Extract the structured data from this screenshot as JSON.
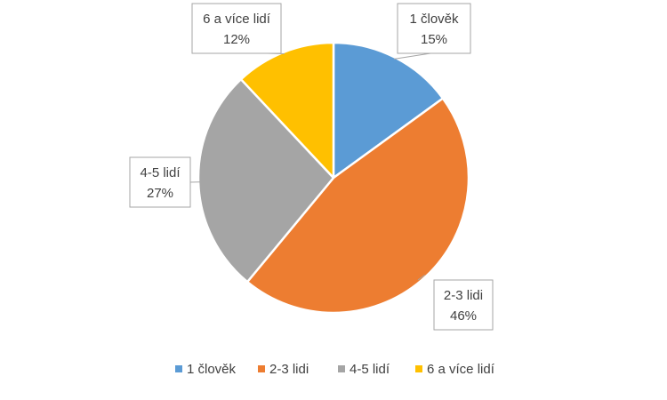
{
  "chart_data": {
    "type": "pie",
    "title": "",
    "slices": [
      {
        "label": "1 člověk",
        "value": 15,
        "value_label": "15%",
        "color": "#5B9BD5"
      },
      {
        "label": "2-3 lidi",
        "value": 46,
        "value_label": "46%",
        "color": "#ED7D31"
      },
      {
        "label": "4-5 lidí",
        "value": 27,
        "value_label": "27%",
        "color": "#A5A5A5"
      },
      {
        "label": "6 a více lidí",
        "value": 12,
        "value_label": "12%",
        "color": "#FFC000"
      }
    ],
    "legend_position": "bottom",
    "data_labels": "callout boxes with category name and percentage"
  }
}
